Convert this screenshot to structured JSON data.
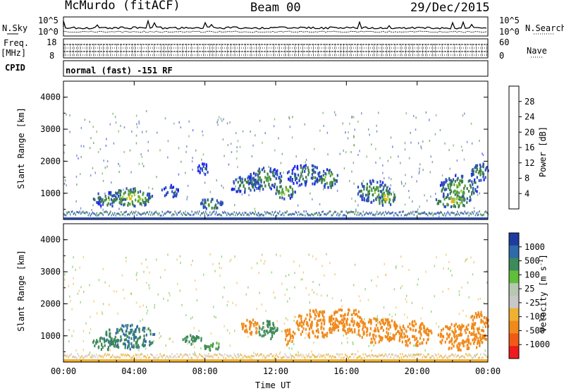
{
  "header": {
    "station": "McMurdo (fitACF)",
    "beam": "Beam 00",
    "date": "29/Dec/2015"
  },
  "strip": {
    "nsky_label": "N.Sky",
    "nsearch_label": "N.Search",
    "nsky_ticks": [
      "10^5",
      "10^0"
    ],
    "nsearch_ticks": [
      "10^5",
      "10^0"
    ],
    "freq_label": "Freq.",
    "freq_unit": "[MHz]",
    "freq_ticks": [
      "18",
      "8"
    ],
    "nave_label": "Nave",
    "nave_ticks": [
      "60",
      "0"
    ],
    "cpid_label": "CPID",
    "cpid_text": "normal (fast) -151 RF"
  },
  "chart_data": [
    {
      "type": "heatmap",
      "name": "power",
      "ylabel": "Slant Range [km]",
      "y_ticks": [
        "1000",
        "2000",
        "3000",
        "4000"
      ],
      "ylim": [
        180,
        4500
      ],
      "colorbar_label": "Power [dB]",
      "colorbar_ticks": [
        "4",
        "8",
        "12",
        "16",
        "20",
        "24",
        "28"
      ],
      "colorbar_colors": [
        "#1a1aff",
        "#2b4fbf",
        "#3a7a4a",
        "#4c9c3c",
        "#9bcd3c",
        "#f0b400",
        "#f28c1c",
        "#f05a16",
        "#ee1c1c"
      ],
      "blobs": [
        {
          "t": 2.5,
          "r": 850,
          "dt": 1.0,
          "dr": 220,
          "p": 14
        },
        {
          "t": 3.8,
          "r": 900,
          "dt": 1.2,
          "dr": 300,
          "p": 20
        },
        {
          "t": 6.0,
          "r": 1100,
          "dt": 0.5,
          "dr": 200,
          "p": 10
        },
        {
          "t": 8.3,
          "r": 700,
          "dt": 0.7,
          "dr": 200,
          "p": 14
        },
        {
          "t": 7.9,
          "r": 1800,
          "dt": 0.4,
          "dr": 180,
          "p": 8
        },
        {
          "t": 10.2,
          "r": 1300,
          "dt": 0.9,
          "dr": 250,
          "p": 12
        },
        {
          "t": 11.4,
          "r": 1500,
          "dt": 1.0,
          "dr": 350,
          "p": 14
        },
        {
          "t": 12.5,
          "r": 1100,
          "dt": 0.6,
          "dr": 250,
          "p": 18
        },
        {
          "t": 13.6,
          "r": 1600,
          "dt": 1.0,
          "dr": 350,
          "p": 12
        },
        {
          "t": 14.9,
          "r": 1500,
          "dt": 0.6,
          "dr": 300,
          "p": 16
        },
        {
          "t": 17.5,
          "r": 1100,
          "dt": 1.0,
          "dr": 350,
          "p": 14
        },
        {
          "t": 18.2,
          "r": 900,
          "dt": 0.6,
          "dr": 250,
          "p": 20
        },
        {
          "t": 22.3,
          "r": 1200,
          "dt": 1.1,
          "dr": 400,
          "p": 16
        },
        {
          "t": 22.0,
          "r": 800,
          "dt": 1.0,
          "dr": 200,
          "p": 22
        },
        {
          "t": 23.5,
          "r": 1700,
          "dt": 0.6,
          "dr": 300,
          "p": 12
        }
      ]
    },
    {
      "type": "heatmap",
      "name": "velocity",
      "ylabel": "Slant Range [km]",
      "y_ticks": [
        "1000",
        "2000",
        "3000",
        "4000"
      ],
      "ylim": [
        180,
        4500
      ],
      "xlabel": "Time UT",
      "x_ticks": [
        "00:00",
        "04:00",
        "08:00",
        "12:00",
        "16:00",
        "20:00",
        "00:00"
      ],
      "xlim": [
        0,
        24
      ],
      "colorbar_label": "Velocity [m s",
      "colorbar_sup": "-1",
      "colorbar_ticks": [
        "1000",
        "500",
        "100",
        "25",
        "-25",
        "-100",
        "-500",
        "-1000"
      ],
      "colorbar_colors": [
        "#1e3ca0",
        "#2f6aaa",
        "#3e8a5a",
        "#5fbf3a",
        "#b7c8b0",
        "#c8c8c8",
        "#f0b030",
        "#f08a1c",
        "#f05a16",
        "#ee1c1c"
      ],
      "blobs": [
        {
          "t": 3.7,
          "r": 1000,
          "dt": 1.5,
          "dr": 380,
          "v": 300
        },
        {
          "t": 2.4,
          "r": 800,
          "dt": 0.8,
          "dr": 200,
          "v": 200
        },
        {
          "t": 7.3,
          "r": 900,
          "dt": 0.6,
          "dr": 180,
          "v": 150
        },
        {
          "t": 8.4,
          "r": 700,
          "dt": 0.5,
          "dr": 150,
          "v": 60
        },
        {
          "t": 10.5,
          "r": 1300,
          "dt": 0.6,
          "dr": 250,
          "v": -200
        },
        {
          "t": 11.5,
          "r": 1200,
          "dt": 0.6,
          "dr": 300,
          "v": 150
        },
        {
          "t": 12.7,
          "r": 1000,
          "dt": 0.4,
          "dr": 250,
          "v": -300
        },
        {
          "t": 14.2,
          "r": 1400,
          "dt": 1.2,
          "dr": 450,
          "v": -400
        },
        {
          "t": 16.0,
          "r": 1500,
          "dt": 1.0,
          "dr": 400,
          "v": -350
        },
        {
          "t": 17.8,
          "r": 1200,
          "dt": 1.2,
          "dr": 400,
          "v": -300
        },
        {
          "t": 19.8,
          "r": 1100,
          "dt": 1.0,
          "dr": 400,
          "v": -350
        },
        {
          "t": 22.5,
          "r": 1000,
          "dt": 1.4,
          "dr": 450,
          "v": -400
        },
        {
          "t": 23.5,
          "r": 1500,
          "dt": 0.6,
          "dr": 300,
          "v": -300
        }
      ]
    }
  ]
}
